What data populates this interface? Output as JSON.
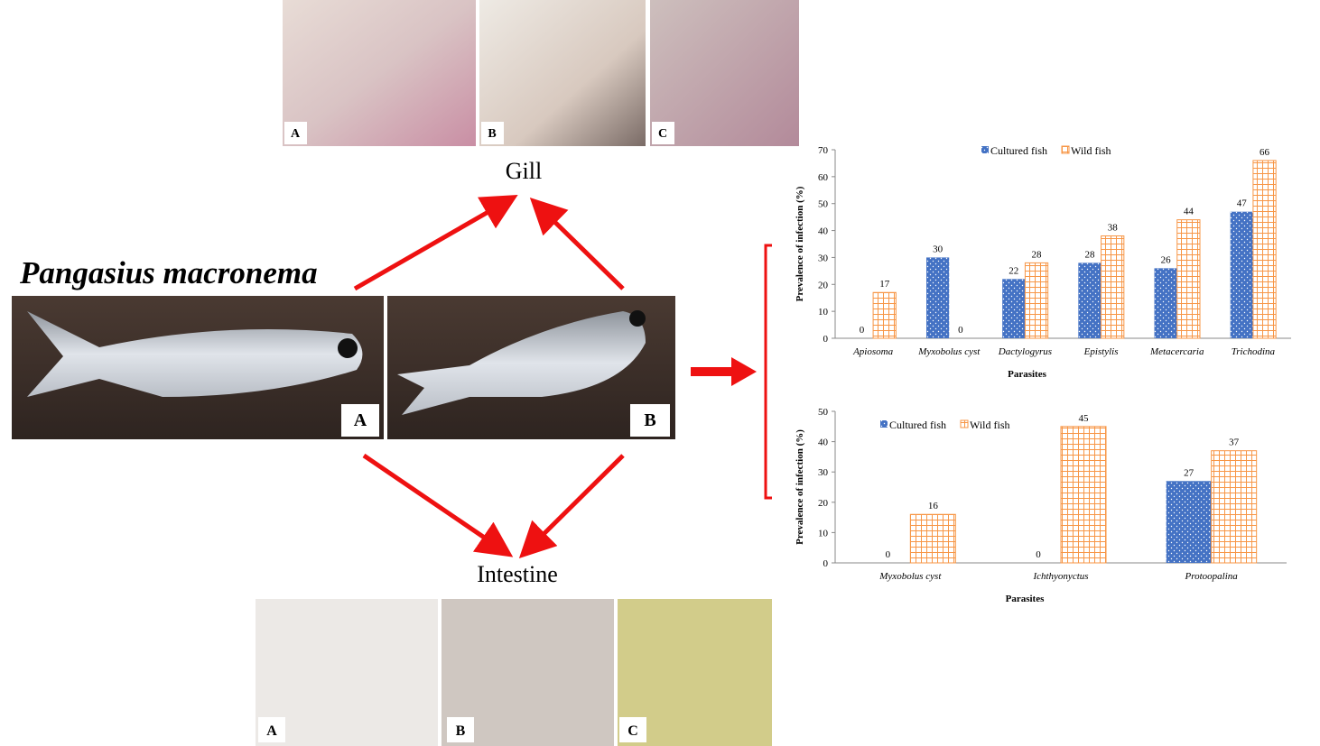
{
  "figure": {
    "species": "Pangasius macronema",
    "gill_label": "Gill",
    "intestine_label": "Intestine",
    "gill_panels": [
      "A",
      "B",
      "C"
    ],
    "fish_panels": [
      "A",
      "B"
    ],
    "intestine_panels": [
      "A",
      "B",
      "C"
    ]
  },
  "chart_data": [
    {
      "type": "bar",
      "y_label": "Prevalence of infection (%)",
      "x_label": "Parasites",
      "categories": [
        "Apiosoma",
        "Myxobolus cyst",
        "Dactylogyrus",
        "Epistylis",
        "Metacercaria",
        "Trichodina"
      ],
      "series": [
        {
          "name": "Cultured fish",
          "color": "#4472c4",
          "pattern": "dots",
          "values": [
            0,
            30,
            22,
            28,
            26,
            47
          ]
        },
        {
          "name": "Wild fish",
          "color": "#f79646",
          "pattern": "grid",
          "values": [
            17,
            0,
            28,
            38,
            44,
            66
          ]
        }
      ],
      "ylim": [
        0,
        70
      ],
      "yticks": [
        0,
        10,
        20,
        30,
        40,
        50,
        60,
        70
      ],
      "legend": "top"
    },
    {
      "type": "bar",
      "y_label": "Prevalence of infection (%)",
      "x_label": "Parasites",
      "categories": [
        "Myxobolus cyst",
        "Ichthyonyctus",
        "Protoopalina"
      ],
      "series": [
        {
          "name": "Cultured fish",
          "color": "#4472c4",
          "pattern": "dots",
          "values": [
            0,
            0,
            27
          ]
        },
        {
          "name": "Wild fish",
          "color": "#f79646",
          "pattern": "grid",
          "values": [
            16,
            45,
            37
          ]
        }
      ],
      "ylim": [
        0,
        50
      ],
      "yticks": [
        0,
        10,
        20,
        30,
        40,
        50
      ],
      "legend": "top-left"
    }
  ]
}
